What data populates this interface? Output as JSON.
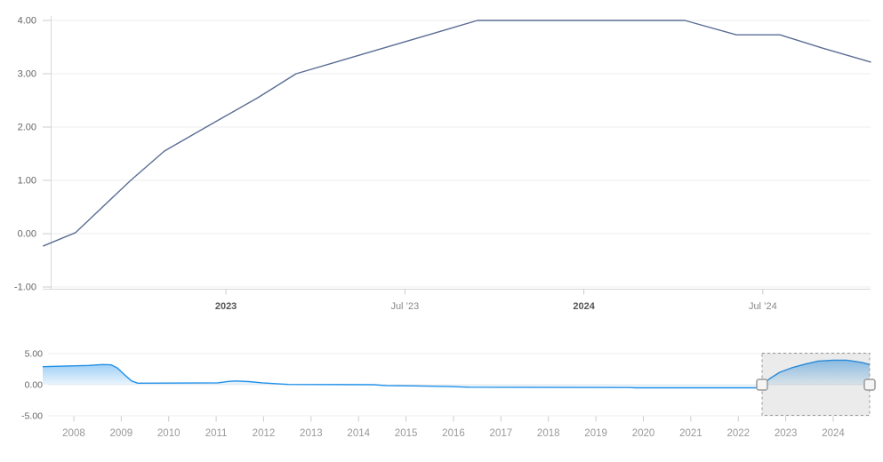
{
  "chart_data": [
    {
      "type": "line",
      "name": "main-rate-chart",
      "title": "",
      "xlabel": "",
      "ylabel": "",
      "legend": false,
      "grid": true,
      "xlim": [
        2022.488,
        2024.801
      ],
      "ylim": [
        -1.033,
        4.1
      ],
      "yticks": [
        {
          "v": 4,
          "label": "4.00"
        },
        {
          "v": 3,
          "label": "3.00"
        },
        {
          "v": 2,
          "label": "2.00"
        },
        {
          "v": 1,
          "label": "1.00"
        },
        {
          "v": 0,
          "label": "0.00"
        },
        {
          "v": -1,
          "label": "-1.00"
        }
      ],
      "xticks": [
        {
          "t": 2023.0,
          "label": "2023",
          "bold": true
        },
        {
          "t": 2023.5,
          "label": "Jul ’23",
          "bold": false
        },
        {
          "t": 2024.0,
          "label": "2024",
          "bold": true
        },
        {
          "t": 2024.5,
          "label": "Jul ’24",
          "bold": false
        }
      ],
      "series": [
        {
          "name": "rate",
          "points": [
            [
              2022.49,
              -0.23
            ],
            [
              2022.58,
              0.02
            ],
            [
              2022.734,
              1.0
            ],
            [
              2022.828,
              1.55
            ],
            [
              2022.945,
              2.0
            ],
            [
              2023.089,
              2.55
            ],
            [
              2023.196,
              3.0
            ],
            [
              2023.703,
              4.0
            ],
            [
              2024.282,
              4.0
            ],
            [
              2024.426,
              3.73
            ],
            [
              2024.548,
              3.73
            ],
            [
              2024.667,
              3.48
            ],
            [
              2024.801,
              3.22
            ]
          ]
        }
      ]
    },
    {
      "type": "area",
      "name": "navigator-chart",
      "title": "",
      "xlabel": "",
      "ylabel": "",
      "legend": false,
      "grid": true,
      "xlim": [
        2007.345,
        2024.787
      ],
      "ylim": [
        -5.0,
        5.143
      ],
      "baseline": 0,
      "yticks": [
        {
          "v": 5,
          "label": "5.00"
        },
        {
          "v": 0,
          "label": "0.00"
        },
        {
          "v": -5,
          "label": "-5.00"
        }
      ],
      "xticks": [
        {
          "t": 2008,
          "label": "2008"
        },
        {
          "t": 2009,
          "label": "2009"
        },
        {
          "t": 2010,
          "label": "2010"
        },
        {
          "t": 2011,
          "label": "2011"
        },
        {
          "t": 2012,
          "label": "2012"
        },
        {
          "t": 2013,
          "label": "2013"
        },
        {
          "t": 2014,
          "label": "2014"
        },
        {
          "t": 2015,
          "label": "2015"
        },
        {
          "t": 2016,
          "label": "2016"
        },
        {
          "t": 2017,
          "label": "2017"
        },
        {
          "t": 2018,
          "label": "2018"
        },
        {
          "t": 2019,
          "label": "2019"
        },
        {
          "t": 2020,
          "label": "2020"
        },
        {
          "t": 2021,
          "label": "2021"
        },
        {
          "t": 2022,
          "label": "2022"
        },
        {
          "t": 2023,
          "label": "2023"
        },
        {
          "t": 2024,
          "label": "2024"
        }
      ],
      "series": [
        {
          "name": "rate-history",
          "points": [
            [
              2007.345,
              2.9
            ],
            [
              2008.319,
              3.1
            ],
            [
              2008.6,
              3.25
            ],
            [
              2008.788,
              3.2
            ],
            [
              2008.919,
              2.7
            ],
            [
              2009.069,
              1.6
            ],
            [
              2009.218,
              0.6
            ],
            [
              2009.35,
              0.25
            ],
            [
              2011.036,
              0.3
            ],
            [
              2011.279,
              0.55
            ],
            [
              2011.41,
              0.6
            ],
            [
              2011.691,
              0.5
            ],
            [
              2011.972,
              0.3
            ],
            [
              2012.516,
              0.05
            ],
            [
              2014.314,
              0.0
            ],
            [
              2014.595,
              -0.15
            ],
            [
              2015.251,
              -0.2
            ],
            [
              2015.906,
              -0.3
            ],
            [
              2016.337,
              -0.4
            ],
            [
              2019.71,
              -0.45
            ],
            [
              2019.841,
              -0.5
            ],
            [
              2022.37,
              -0.5
            ],
            [
              2022.501,
              0.0
            ],
            [
              2022.669,
              1.0
            ],
            [
              2022.875,
              2.0
            ],
            [
              2023.119,
              2.7
            ],
            [
              2023.4,
              3.3
            ],
            [
              2023.681,
              3.8
            ],
            [
              2024.0,
              3.95
            ],
            [
              2024.281,
              3.95
            ],
            [
              2024.468,
              3.75
            ],
            [
              2024.618,
              3.55
            ],
            [
              2024.768,
              3.25
            ]
          ]
        }
      ],
      "selection": {
        "from": 2022.501,
        "to": 2024.768
      }
    }
  ],
  "colors": {
    "background": "#ffffff",
    "main_line": "#5b6e94",
    "nav_line": "#2190e8",
    "nav_fill_top": "rgba(33,144,232,0.50)",
    "nav_fill_bottom": "rgba(33,144,232,0.04)",
    "grid": "#ececec",
    "axis": "#d8d8d8",
    "tick": "#cccccc",
    "ylabel_color": "#666666",
    "xlabel_color": "#888888",
    "xlabel_bold_color": "#555555",
    "nav_label_color": "#999999",
    "mask_fill": "rgba(102,102,102,0.13)",
    "mask_stroke": "#999999",
    "handle_fill": "#f5f5f5",
    "handle_stroke": "#999999"
  }
}
